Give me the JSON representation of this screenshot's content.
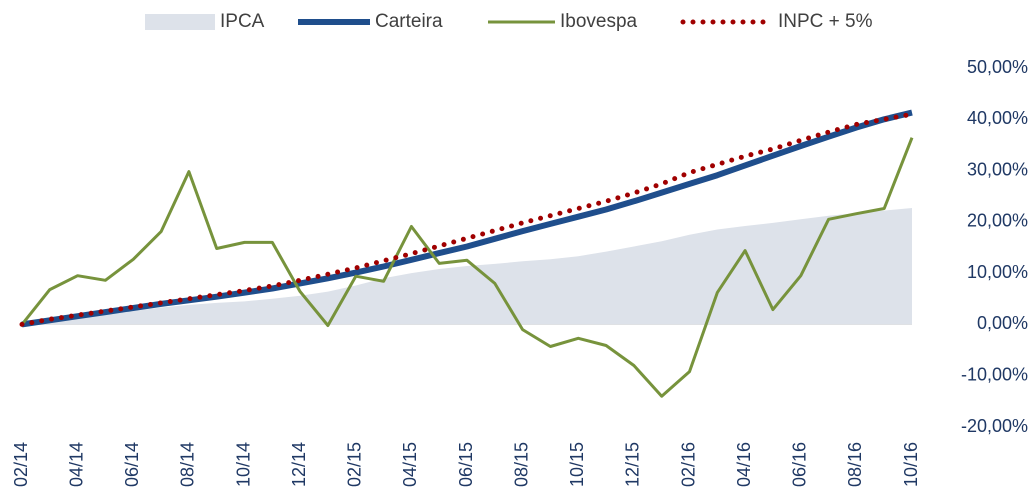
{
  "chart_data": {
    "type": "line",
    "categories": [
      "02/14",
      null,
      "04/14",
      null,
      "06/14",
      null,
      "08/14",
      null,
      "10/14",
      null,
      "12/14",
      null,
      "02/15",
      null,
      "04/15",
      null,
      "06/15",
      null,
      "08/15",
      null,
      "10/15",
      null,
      "12/15",
      null,
      "02/16",
      null,
      "04/16",
      null,
      "06/16",
      null,
      "08/16",
      null,
      "10/16"
    ],
    "series": [
      {
        "name": "IPCA",
        "color": "#dde2ea",
        "style": "area",
        "values": [
          0,
          0.7,
          1.3,
          1.9,
          2.6,
          3.3,
          3.8,
          4.2,
          4.5,
          5,
          5.6,
          6.4,
          7.6,
          9,
          10,
          10.8,
          11.4,
          11.8,
          12.3,
          12.7,
          13.3,
          14.2,
          15.2,
          16.2,
          17.5,
          18.5,
          19.2,
          19.8,
          20.5,
          21.2,
          21.7,
          22.2,
          22.7
        ]
      },
      {
        "name": "Carteira",
        "color": "#1f4e8c",
        "style": "thick",
        "values": [
          0,
          0.8,
          1.6,
          2.4,
          3.2,
          4,
          4.7,
          5.4,
          6.2,
          7,
          8,
          9,
          10.1,
          11.3,
          12.6,
          13.9,
          15.2,
          16.7,
          18.2,
          19.6,
          21,
          22.4,
          24,
          25.7,
          27.4,
          29.1,
          31,
          32.9,
          34.8,
          36.6,
          38.4,
          40,
          41.3
        ]
      },
      {
        "name": "Ibovespa",
        "color": "#77933c",
        "style": "solid",
        "values": [
          0,
          6.8,
          9.5,
          8.6,
          12.7,
          18.1,
          29.8,
          14.8,
          16,
          16,
          6.4,
          -0.2,
          9.4,
          8.4,
          19.1,
          11.9,
          12.5,
          8,
          -1,
          -4.3,
          -2.7,
          -4.1,
          -8,
          -14,
          -9.2,
          6.2,
          14.4,
          2.9,
          9.5,
          20.5,
          21.6,
          22.6,
          36.4
        ]
      },
      {
        "name": "INPC + 5%",
        "color": "#a00000",
        "style": "dotted",
        "values": [
          0,
          1,
          1.8,
          2.6,
          3.4,
          4.2,
          5,
          5.8,
          6.6,
          7.5,
          8.6,
          9.8,
          11,
          12.4,
          13.8,
          15.3,
          16.8,
          18.3,
          19.8,
          21.2,
          22.6,
          24,
          25.6,
          27.4,
          29.6,
          31.2,
          32.8,
          34.2,
          35.9,
          37.5,
          39,
          40,
          41
        ]
      }
    ],
    "ylim": [
      -20,
      50
    ],
    "yticks": [
      {
        "value": -20,
        "label": "-20,00%"
      },
      {
        "value": -10,
        "label": "-10,00%"
      },
      {
        "value": 0,
        "label": "0,00%"
      },
      {
        "value": 10,
        "label": "10,00%"
      },
      {
        "value": 20,
        "label": "20,00%"
      },
      {
        "value": 30,
        "label": "30,00%"
      },
      {
        "value": 40,
        "label": "40,00%"
      },
      {
        "value": 50,
        "label": "50,00%"
      }
    ],
    "y_axis_side": "right"
  }
}
